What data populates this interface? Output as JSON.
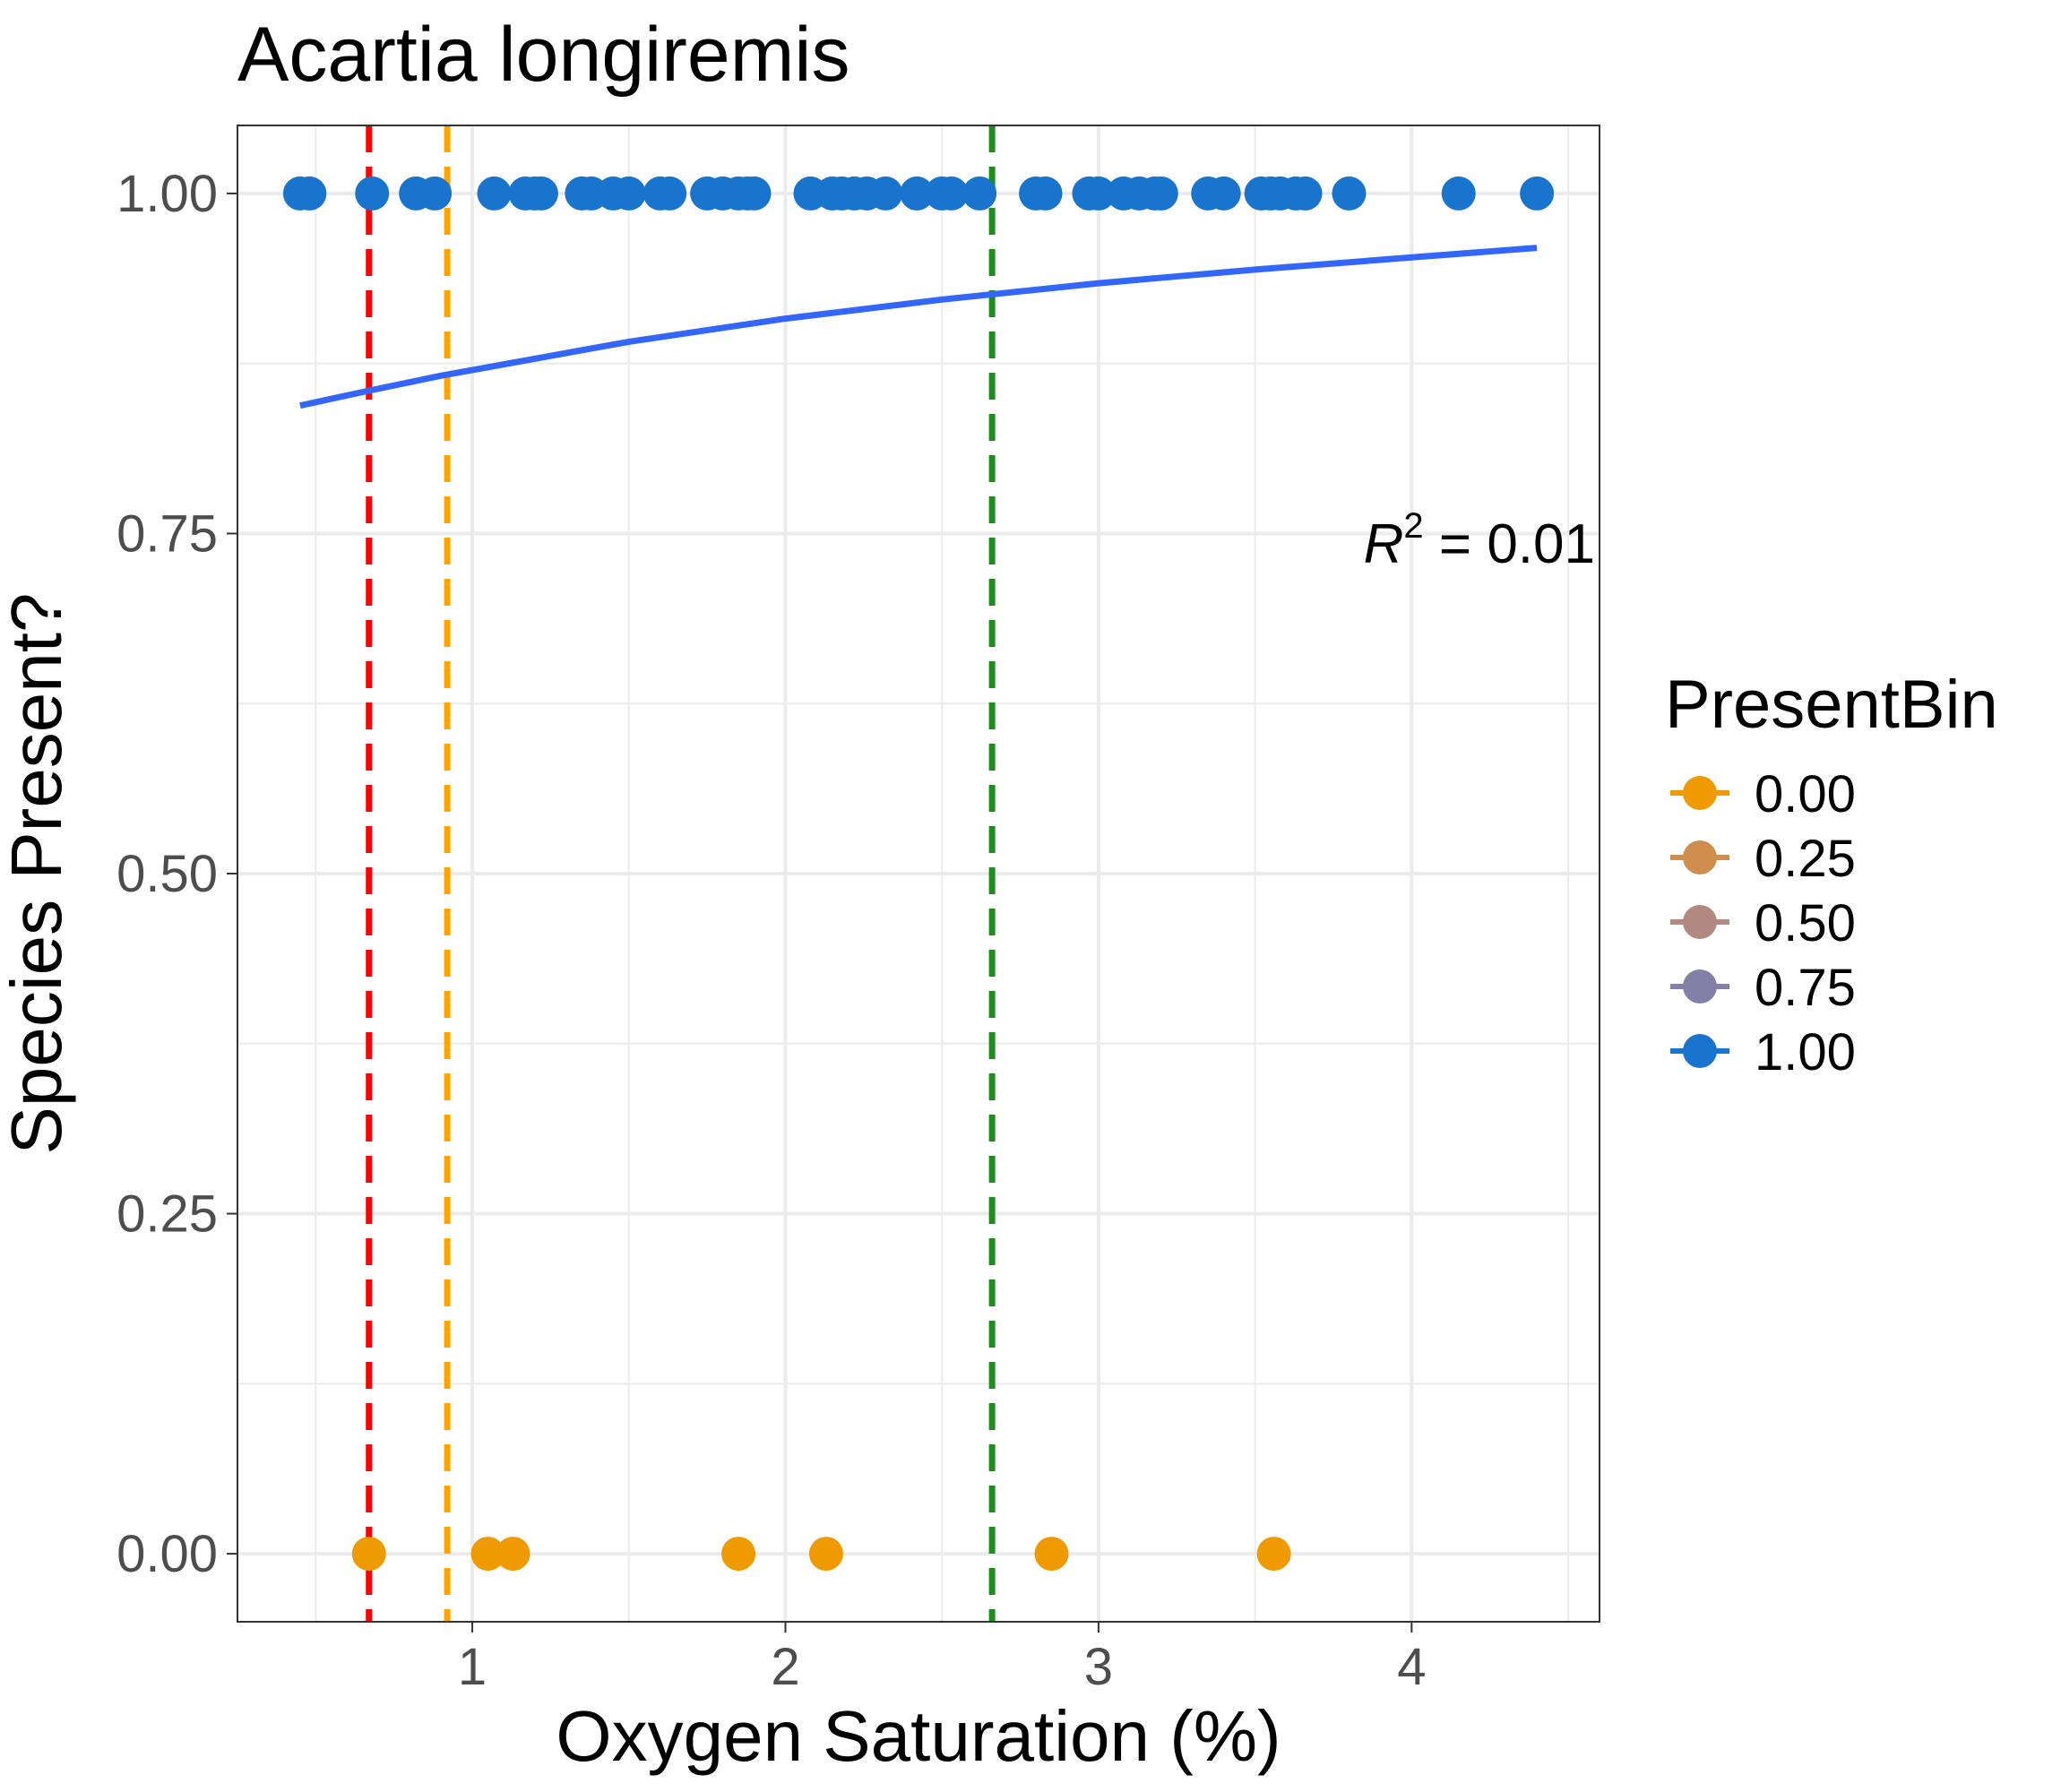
{
  "chart_data": {
    "type": "scatter",
    "title": "Acartia longiremis",
    "xlabel": "Oxygen Saturation (%)",
    "ylabel": "Species Present?",
    "xlim": [
      0.25,
      4.6
    ],
    "ylim": [
      -0.05,
      1.05
    ],
    "x_ticks": [
      {
        "value": 1,
        "label": "1"
      },
      {
        "value": 2,
        "label": "2"
      },
      {
        "value": 3,
        "label": "3"
      },
      {
        "value": 4,
        "label": "4"
      }
    ],
    "y_ticks": [
      {
        "value": 0,
        "label": "0.00"
      },
      {
        "value": 0.25,
        "label": "0.25"
      },
      {
        "value": 0.5,
        "label": "0.50"
      },
      {
        "value": 0.75,
        "label": "0.75"
      },
      {
        "value": 1,
        "label": "1.00"
      }
    ],
    "grid": true,
    "legend": {
      "title": "PresentBin",
      "placement": "right",
      "items": [
        {
          "label": "0.00",
          "color": "#EE9A00"
        },
        {
          "label": "0.25",
          "color": "#D08E4E"
        },
        {
          "label": "0.50",
          "color": "#B18980"
        },
        {
          "label": "0.75",
          "color": "#8380A8"
        },
        {
          "label": "1.00",
          "color": "#1874CD"
        }
      ]
    },
    "points_present": {
      "y": 1.0,
      "color": "#1874CD",
      "x": [
        0.45,
        0.48,
        0.68,
        0.82,
        0.88,
        1.07,
        1.17,
        1.2,
        1.22,
        1.35,
        1.38,
        1.45,
        1.5,
        1.6,
        1.63,
        1.75,
        1.8,
        1.85,
        1.88,
        1.9,
        2.08,
        2.15,
        2.18,
        2.22,
        2.26,
        2.32,
        2.42,
        2.5,
        2.53,
        2.62,
        2.8,
        2.83,
        2.97,
        3.0,
        3.08,
        3.13,
        3.18,
        3.2,
        3.35,
        3.4,
        3.52,
        3.55,
        3.58,
        3.63,
        3.66,
        3.8,
        4.15,
        4.4
      ]
    },
    "points_absent": {
      "y": 0.0,
      "color": "#EE9A00",
      "x": [
        0.67,
        1.05,
        1.13,
        1.85,
        2.13,
        2.85,
        3.56
      ]
    },
    "fit_curve": {
      "color": "#3366FF",
      "x": [
        0.45,
        0.67,
        0.9,
        1.5,
        2.0,
        2.5,
        3.0,
        3.5,
        4.0,
        4.4
      ],
      "y": [
        0.844,
        0.855,
        0.866,
        0.891,
        0.908,
        0.922,
        0.934,
        0.944,
        0.953,
        0.96
      ]
    },
    "vlines": [
      {
        "x": 0.67,
        "color": "#FF0000"
      },
      {
        "x": 0.92,
        "color": "#FFA500"
      },
      {
        "x": 2.66,
        "color": "#228B22"
      }
    ],
    "annotation": {
      "base": "R",
      "superscript": "2",
      "rest": " = 0.01"
    }
  }
}
